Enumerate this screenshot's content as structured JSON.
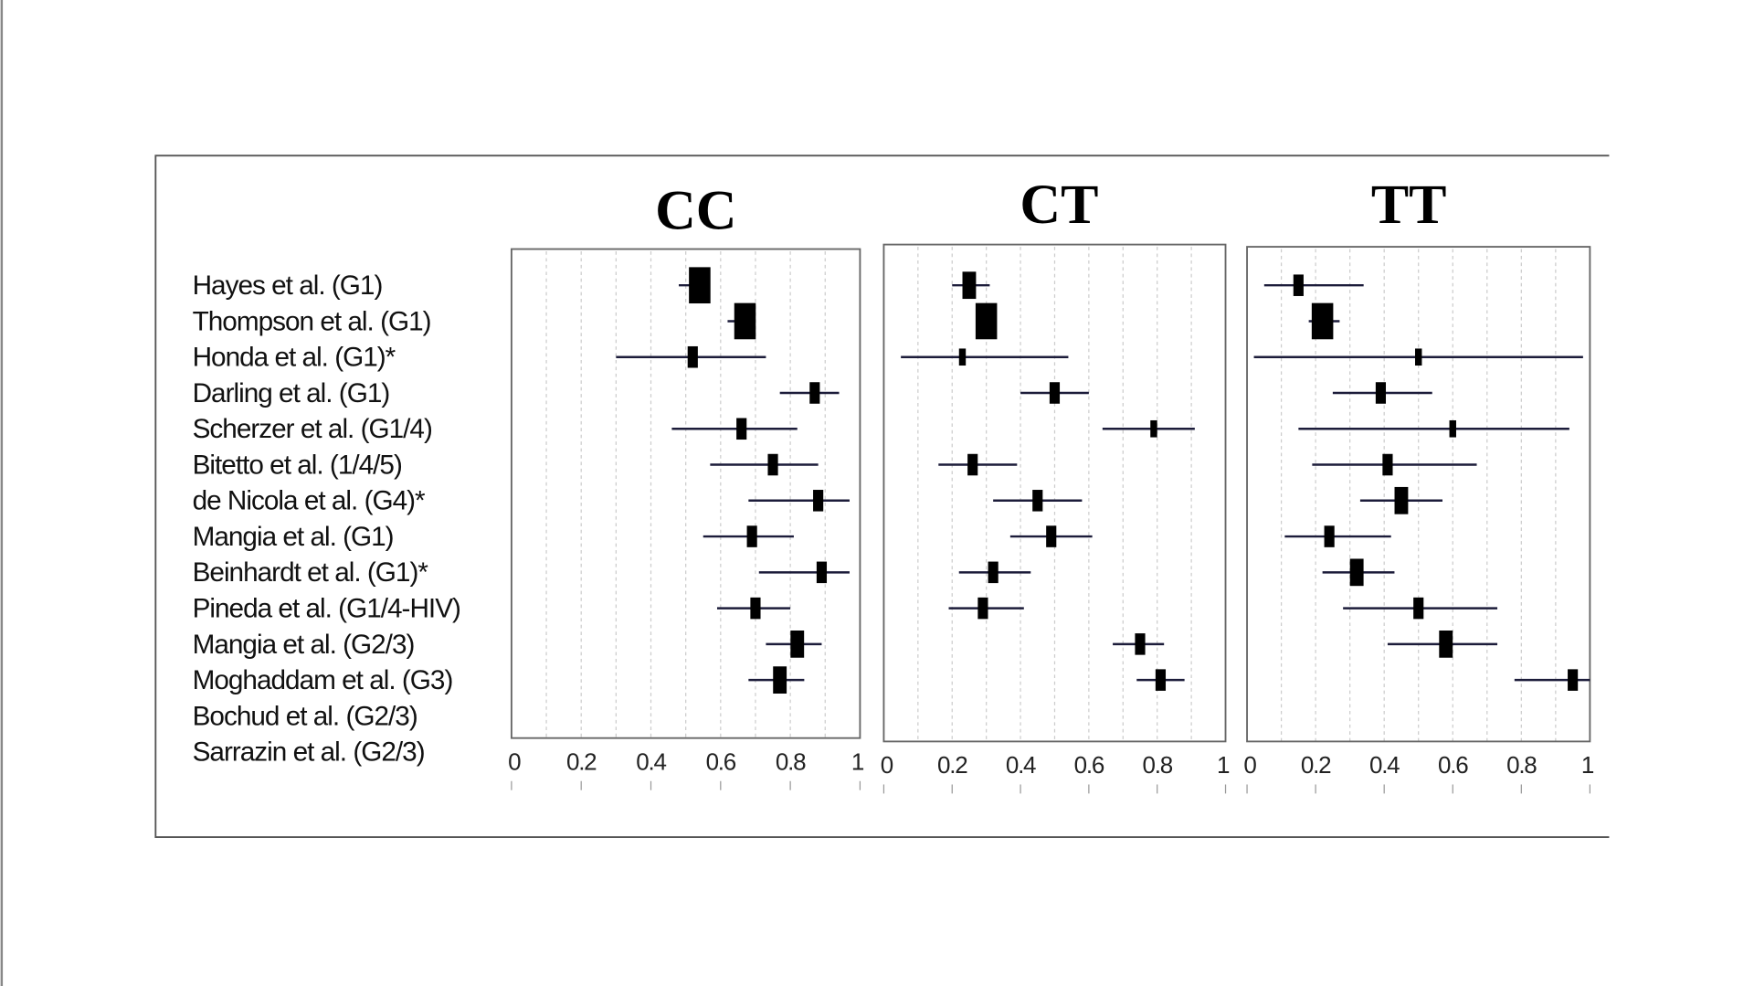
{
  "chart_data": {
    "type": "forest",
    "studies": [
      "Hayes et al. (G1)",
      "Thompson et al. (G1)",
      "Honda et al. (G1)*",
      "Darling et al. (G1)",
      "Scherzer et al. (G1/4)",
      "Bitetto et al. (1/4/5)",
      "de Nicola et al. (G4)*",
      "Mangia et al. (G1)",
      "Beinhardt et al. (G1)*",
      "Pineda et al. (G1/4-HIV)",
      "Mangia et al. (G2/3)",
      "Moghaddam et al. (G3)",
      "Bochud et al.  (G2/3)",
      "Sarrazin et al. (G2/3)"
    ],
    "xlim": [
      0,
      1
    ],
    "xticks": [
      "0",
      "0.2",
      "0.4",
      "0.6",
      "0.8",
      "1"
    ],
    "grid": true,
    "panels": [
      {
        "title": "CC",
        "points": [
          {
            "est": 0.54,
            "lo": 0.48,
            "hi": 0.57,
            "weight": 4
          },
          {
            "est": 0.67,
            "lo": 0.62,
            "hi": 0.7,
            "weight": 4
          },
          {
            "est": 0.52,
            "lo": 0.3,
            "hi": 0.73,
            "weight": 2
          },
          {
            "est": 0.87,
            "lo": 0.77,
            "hi": 0.94,
            "weight": 2
          },
          {
            "est": 0.66,
            "lo": 0.46,
            "hi": 0.82,
            "weight": 2
          },
          {
            "est": 0.75,
            "lo": 0.57,
            "hi": 0.88,
            "weight": 2
          },
          {
            "est": 0.88,
            "lo": 0.68,
            "hi": 0.97,
            "weight": 2
          },
          {
            "est": 0.69,
            "lo": 0.55,
            "hi": 0.81,
            "weight": 2
          },
          {
            "est": 0.89,
            "lo": 0.71,
            "hi": 0.97,
            "weight": 2
          },
          {
            "est": 0.7,
            "lo": 0.59,
            "hi": 0.8,
            "weight": 2
          },
          {
            "est": 0.82,
            "lo": 0.73,
            "hi": 0.89,
            "weight": 3
          },
          {
            "est": 0.77,
            "lo": 0.68,
            "hi": 0.84,
            "weight": 3
          },
          null,
          null
        ]
      },
      {
        "title": "CT",
        "points": [
          {
            "est": 0.25,
            "lo": 0.2,
            "hi": 0.31,
            "weight": 3
          },
          {
            "est": 0.3,
            "lo": 0.27,
            "hi": 0.33,
            "weight": 4
          },
          {
            "est": 0.23,
            "lo": 0.05,
            "hi": 0.54,
            "weight": 1
          },
          {
            "est": 0.5,
            "lo": 0.4,
            "hi": 0.6,
            "weight": 2
          },
          {
            "est": 0.79,
            "lo": 0.64,
            "hi": 0.91,
            "weight": 1
          },
          {
            "est": 0.26,
            "lo": 0.16,
            "hi": 0.39,
            "weight": 2
          },
          {
            "est": 0.45,
            "lo": 0.32,
            "hi": 0.58,
            "weight": 2
          },
          {
            "est": 0.49,
            "lo": 0.37,
            "hi": 0.61,
            "weight": 2
          },
          {
            "est": 0.32,
            "lo": 0.22,
            "hi": 0.43,
            "weight": 2
          },
          {
            "est": 0.29,
            "lo": 0.19,
            "hi": 0.41,
            "weight": 2
          },
          {
            "est": 0.75,
            "lo": 0.67,
            "hi": 0.82,
            "weight": 2
          },
          {
            "est": 0.81,
            "lo": 0.74,
            "hi": 0.88,
            "weight": 2
          },
          null,
          null
        ]
      },
      {
        "title": "TT",
        "points": [
          {
            "est": 0.15,
            "lo": 0.05,
            "hi": 0.34,
            "weight": 2
          },
          {
            "est": 0.22,
            "lo": 0.18,
            "hi": 0.27,
            "weight": 4
          },
          {
            "est": 0.5,
            "lo": 0.02,
            "hi": 0.98,
            "weight": 1
          },
          {
            "est": 0.39,
            "lo": 0.25,
            "hi": 0.54,
            "weight": 2
          },
          {
            "est": 0.6,
            "lo": 0.15,
            "hi": 0.94,
            "weight": 1
          },
          {
            "est": 0.41,
            "lo": 0.19,
            "hi": 0.67,
            "weight": 2
          },
          {
            "est": 0.45,
            "lo": 0.33,
            "hi": 0.57,
            "weight": 3
          },
          {
            "est": 0.24,
            "lo": 0.11,
            "hi": 0.42,
            "weight": 2
          },
          {
            "est": 0.32,
            "lo": 0.22,
            "hi": 0.43,
            "weight": 3
          },
          {
            "est": 0.5,
            "lo": 0.28,
            "hi": 0.73,
            "weight": 2
          },
          {
            "est": 0.58,
            "lo": 0.41,
            "hi": 0.73,
            "weight": 3
          },
          {
            "est": 0.95,
            "lo": 0.78,
            "hi": 1.0,
            "weight": 2
          },
          null,
          null
        ]
      }
    ]
  }
}
